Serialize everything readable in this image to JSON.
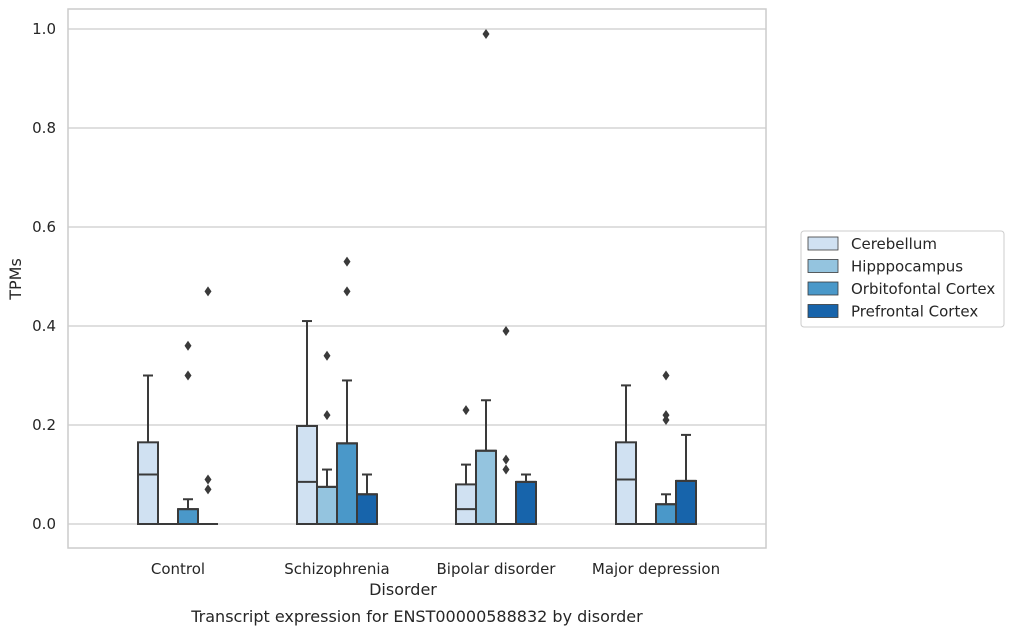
{
  "caption": "Transcript expression for ENST00000588832 by disorder",
  "chart_data": {
    "type": "box",
    "xlabel": "Disorder",
    "ylabel": "TPMs",
    "ylim": [
      -0.048,
      1.04
    ],
    "yticks": [
      "0.0",
      "0.2",
      "0.4",
      "0.6",
      "0.8",
      "1.0"
    ],
    "grid": true,
    "legend_placement": "right",
    "categories": [
      "Control",
      "Schizophrenia",
      "Bipolar disorder",
      "Major depression"
    ],
    "series": [
      {
        "name": "Cerebellum",
        "color": "#d0e1f2",
        "boxes": [
          {
            "q1": 0.0,
            "median": 0.1,
            "q3": 0.165,
            "whisker_low": 0.0,
            "whisker_high": 0.3,
            "outliers": []
          },
          {
            "q1": 0.0,
            "median": 0.085,
            "q3": 0.198,
            "whisker_low": 0.0,
            "whisker_high": 0.41,
            "outliers": []
          },
          {
            "q1": 0.0,
            "median": 0.03,
            "q3": 0.08,
            "whisker_low": 0.0,
            "whisker_high": 0.12,
            "outliers": [
              0.23
            ]
          },
          {
            "q1": 0.0,
            "median": 0.09,
            "q3": 0.165,
            "whisker_low": 0.0,
            "whisker_high": 0.28,
            "outliers": []
          }
        ]
      },
      {
        "name": "Hipppocampus",
        "color": "#94c4df",
        "boxes": [
          {
            "q1": 0.0,
            "median": 0.0,
            "q3": 0.0,
            "whisker_low": 0.0,
            "whisker_high": 0.0,
            "outliers": []
          },
          {
            "q1": 0.0,
            "median": 0.075,
            "q3": 0.075,
            "whisker_low": 0.0,
            "whisker_high": 0.11,
            "outliers": [
              0.22,
              0.34
            ]
          },
          {
            "q1": 0.0,
            "median": 0.148,
            "q3": 0.148,
            "whisker_low": 0.0,
            "whisker_high": 0.25,
            "outliers": [
              0.99
            ]
          },
          {
            "q1": 0.0,
            "median": 0.0,
            "q3": 0.0,
            "whisker_low": 0.0,
            "whisker_high": 0.0,
            "outliers": []
          }
        ]
      },
      {
        "name": "Orbitofontal Cortex",
        "color": "#4a98c9",
        "boxes": [
          {
            "q1": 0.0,
            "median": 0.03,
            "q3": 0.03,
            "whisker_low": 0.0,
            "whisker_high": 0.05,
            "outliers": [
              0.3,
              0.36
            ]
          },
          {
            "q1": 0.0,
            "median": 0.163,
            "q3": 0.163,
            "whisker_low": 0.0,
            "whisker_high": 0.29,
            "outliers": [
              0.47,
              0.53
            ]
          },
          {
            "q1": 0.0,
            "median": 0.0,
            "q3": 0.0,
            "whisker_low": 0.0,
            "whisker_high": 0.0,
            "outliers": [
              0.11,
              0.13,
              0.39
            ]
          },
          {
            "q1": 0.0,
            "median": 0.04,
            "q3": 0.04,
            "whisker_low": 0.0,
            "whisker_high": 0.06,
            "outliers": [
              0.21,
              0.22,
              0.3
            ]
          }
        ]
      },
      {
        "name": "Prefrontal Cortex",
        "color": "#1764ab",
        "boxes": [
          {
            "q1": 0.0,
            "median": 0.0,
            "q3": 0.0,
            "whisker_low": 0.0,
            "whisker_high": 0.0,
            "outliers": [
              0.07,
              0.09,
              0.47
            ]
          },
          {
            "q1": 0.0,
            "median": 0.06,
            "q3": 0.06,
            "whisker_low": 0.0,
            "whisker_high": 0.1,
            "outliers": []
          },
          {
            "q1": 0.0,
            "median": 0.085,
            "q3": 0.085,
            "whisker_low": 0.0,
            "whisker_high": 0.1,
            "outliers": []
          },
          {
            "q1": 0.0,
            "median": 0.087,
            "q3": 0.087,
            "whisker_low": 0.0,
            "whisker_high": 0.18,
            "outliers": []
          }
        ]
      }
    ]
  }
}
